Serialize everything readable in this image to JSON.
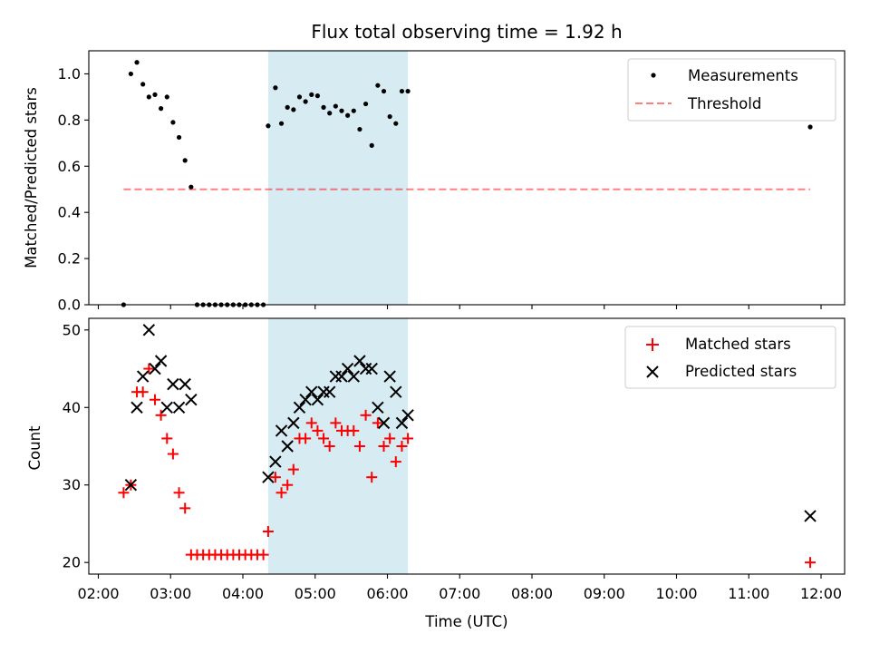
{
  "title": "Flux total observing time = 1.92 h",
  "xlabel": "Time (UTC)",
  "x_ticks": [
    "02:00",
    "03:00",
    "04:00",
    "05:00",
    "06:00",
    "07:00",
    "08:00",
    "09:00",
    "10:00",
    "11:00",
    "12:00"
  ],
  "chart_data": [
    {
      "type": "scatter",
      "ylabel": "Matched/Predicted stars",
      "xlim": [
        "01:53",
        "12:22"
      ],
      "ylim": [
        0,
        1.1
      ],
      "y_ticks": [
        "0.0",
        "0.2",
        "0.4",
        "0.6",
        "0.8",
        "1.0"
      ],
      "grid": false,
      "legend": "top-right",
      "legend_entries": [
        "Measurements",
        "Threshold"
      ],
      "highlight_span": {
        "x": [
          "04:21",
          "06:17"
        ],
        "color": "#add8e6"
      },
      "threshold": {
        "x": [
          "02:21",
          "11:51"
        ],
        "y": 0.5,
        "color": "#ff0000"
      },
      "series": [
        {
          "name": "Measurements",
          "color": "#000000",
          "x": [
            "02:21",
            "02:27",
            "02:32",
            "02:37",
            "02:42",
            "02:47",
            "02:52",
            "02:57",
            "03:02",
            "03:07",
            "03:12",
            "03:17",
            "03:22",
            "03:27",
            "03:32",
            "03:37",
            "03:42",
            "03:47",
            "03:52",
            "03:57",
            "04:02",
            "04:07",
            "04:12",
            "04:17",
            "04:21",
            "04:27",
            "04:32",
            "04:37",
            "04:42",
            "04:47",
            "04:52",
            "04:57",
            "05:02",
            "05:07",
            "05:12",
            "05:17",
            "05:22",
            "05:27",
            "05:32",
            "05:37",
            "05:42",
            "05:47",
            "05:52",
            "05:57",
            "06:02",
            "06:07",
            "06:12",
            "06:17",
            "11:51"
          ],
          "y": [
            0.0,
            1.0,
            1.05,
            0.955,
            0.9,
            0.91,
            0.85,
            0.9,
            0.79,
            0.725,
            0.625,
            0.51,
            0,
            0,
            0,
            0,
            0,
            0,
            0,
            0,
            0,
            0,
            0,
            0,
            0.775,
            0.94,
            0.785,
            0.855,
            0.845,
            0.9,
            0.88,
            0.91,
            0.905,
            0.855,
            0.83,
            0.86,
            0.84,
            0.82,
            0.84,
            0.76,
            0.87,
            0.69,
            0.95,
            0.925,
            0.815,
            0.785,
            0.925,
            0.925,
            0.77
          ]
        }
      ]
    },
    {
      "type": "scatter",
      "ylabel": "Count",
      "xlim": [
        "01:53",
        "12:22"
      ],
      "ylim": [
        18.5,
        51.5
      ],
      "y_ticks": [
        "20",
        "30",
        "40",
        "50"
      ],
      "grid": false,
      "legend": "top-right",
      "highlight_span": {
        "x": [
          "04:21",
          "06:17"
        ],
        "color": "#add8e6"
      },
      "series": [
        {
          "name": "Matched stars",
          "color": "#ff0000",
          "marker": "plus",
          "x": [
            "02:21",
            "02:27",
            "02:32",
            "02:37",
            "02:42",
            "02:47",
            "02:52",
            "02:57",
            "03:02",
            "03:07",
            "03:12",
            "03:17",
            "03:22",
            "03:27",
            "03:32",
            "03:37",
            "03:42",
            "03:47",
            "03:52",
            "03:57",
            "04:02",
            "04:07",
            "04:12",
            "04:17",
            "04:21",
            "04:27",
            "04:32",
            "04:37",
            "04:42",
            "04:47",
            "04:52",
            "04:57",
            "05:02",
            "05:07",
            "05:12",
            "05:17",
            "05:22",
            "05:27",
            "05:32",
            "05:37",
            "05:42",
            "05:47",
            "05:52",
            "05:57",
            "06:02",
            "06:07",
            "06:12",
            "06:17",
            "11:51"
          ],
          "y": [
            29,
            30,
            42,
            42,
            45,
            41,
            39,
            36,
            34,
            29,
            27,
            21,
            21,
            21,
            21,
            21,
            21,
            21,
            21,
            21,
            21,
            21,
            21,
            21,
            24,
            31,
            29,
            30,
            32,
            36,
            36,
            38,
            37,
            36,
            35,
            38,
            37,
            37,
            37,
            35,
            39,
            31,
            38,
            35,
            36,
            33,
            35,
            36,
            20
          ]
        },
        {
          "name": "Predicted stars",
          "color": "#000000",
          "marker": "x",
          "x": [
            "02:27",
            "02:32",
            "02:37",
            "02:42",
            "02:47",
            "02:52",
            "02:57",
            "03:02",
            "03:07",
            "03:12",
            "03:17",
            "04:21",
            "04:27",
            "04:32",
            "04:37",
            "04:42",
            "04:47",
            "04:52",
            "04:57",
            "05:02",
            "05:07",
            "05:12",
            "05:17",
            "05:22",
            "05:27",
            "05:32",
            "05:37",
            "05:42",
            "05:47",
            "05:52",
            "05:57",
            "06:02",
            "06:07",
            "06:12",
            "06:17",
            "11:51"
          ],
          "y": [
            30,
            40,
            44,
            50,
            45,
            46,
            40,
            43,
            40,
            43,
            41,
            31,
            33,
            37,
            35,
            38,
            40,
            41,
            42,
            41,
            42,
            42,
            44,
            44,
            45,
            44,
            46,
            45,
            45,
            40,
            38,
            44,
            42,
            38,
            39,
            26
          ]
        }
      ]
    }
  ]
}
